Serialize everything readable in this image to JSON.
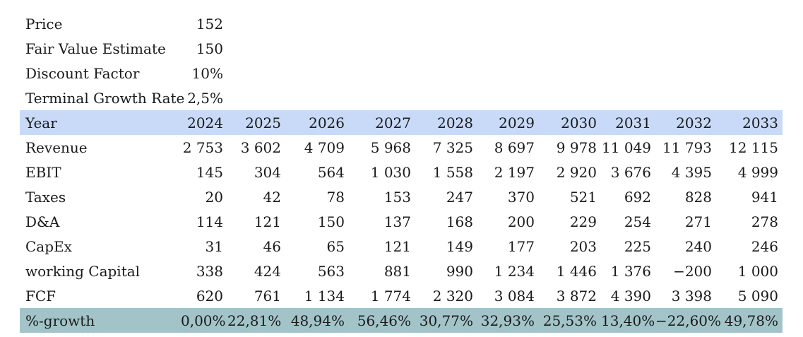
{
  "inputs": [
    {
      "label": "Price",
      "value": "152"
    },
    {
      "label": "Fair Value Estimate",
      "value": "150"
    },
    {
      "label": "Discount Factor",
      "value": "10%"
    },
    {
      "label": "Terminal Growth Rate",
      "value": "2,5%"
    }
  ],
  "header": {
    "label": "Year",
    "years": [
      "2024",
      "2025",
      "2026",
      "2027",
      "2028",
      "2029",
      "2030",
      "2031",
      "2032",
      "2033"
    ]
  },
  "rows": [
    {
      "label": "Revenue",
      "values": [
        "2 753",
        "3 602",
        "4 709",
        "5 968",
        "7 325",
        "8 697",
        "9 978",
        "11 049",
        "11 793",
        "12 115"
      ]
    },
    {
      "label": "EBIT",
      "values": [
        "145",
        "304",
        "564",
        "1 030",
        "1 558",
        "2 197",
        "2 920",
        "3 676",
        "4 395",
        "4 999"
      ]
    },
    {
      "label": "Taxes",
      "values": [
        "20",
        "42",
        "78",
        "153",
        "247",
        "370",
        "521",
        "692",
        "828",
        "941"
      ]
    },
    {
      "label": "D&A",
      "values": [
        "114",
        "121",
        "150",
        "137",
        "168",
        "200",
        "229",
        "254",
        "271",
        "278"
      ]
    },
    {
      "label": "CapEx",
      "values": [
        "31",
        "46",
        "65",
        "121",
        "149",
        "177",
        "203",
        "225",
        "240",
        "246"
      ]
    },
    {
      "label": "working Capital",
      "values": [
        "338",
        "424",
        "563",
        "881",
        "990",
        "1 234",
        "1 446",
        "1 376",
        "−200",
        "1 000"
      ]
    },
    {
      "label": "FCF",
      "values": [
        "620",
        "761",
        "1 134",
        "1 774",
        "2 320",
        "3 084",
        "3 872",
        "4 390",
        "3 398",
        "5 090"
      ]
    }
  ],
  "growth": {
    "label": "%-growth",
    "values": [
      "0,00%",
      "22,81%",
      "48,94%",
      "56,46%",
      "30,77%",
      "32,93%",
      "25,53%",
      "13,40%",
      "−22,60%",
      "49,78%"
    ]
  },
  "colors": {
    "year_band": "#c9daf8",
    "growth_band": "#a2c4c9"
  }
}
